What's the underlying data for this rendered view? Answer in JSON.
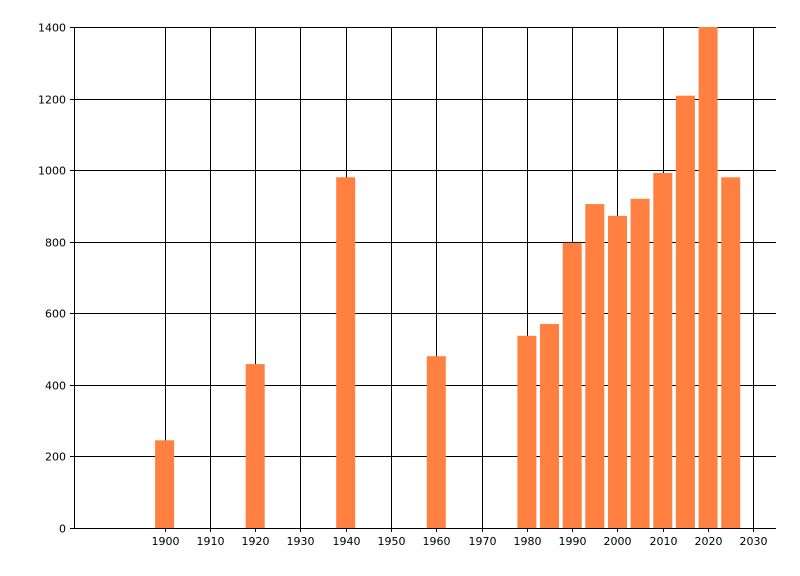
{
  "chart_data": {
    "type": "bar",
    "title": "",
    "xlabel": "",
    "ylabel": "",
    "x": [
      1900,
      1920,
      1940,
      1960,
      1980,
      1985,
      1990,
      1995,
      2000,
      2005,
      2010,
      2015,
      2020,
      2025
    ],
    "values": [
      245,
      458,
      980,
      480,
      537,
      570,
      797,
      905,
      872,
      920,
      992,
      1208,
      1400,
      980
    ],
    "xlim": [
      1880,
      2035
    ],
    "ylim": [
      0,
      1400
    ],
    "xticks": [
      1900,
      1910,
      1920,
      1930,
      1940,
      1950,
      1960,
      1970,
      1980,
      1990,
      2000,
      2010,
      2020,
      2030
    ],
    "yticks": [
      0,
      200,
      400,
      600,
      800,
      1000,
      1200,
      1400
    ],
    "grid": true,
    "legend": "none",
    "colors": {
      "bar": "#FF8040",
      "grid": "#000000",
      "axis": "#000000",
      "background": "#FFFFFF"
    }
  }
}
